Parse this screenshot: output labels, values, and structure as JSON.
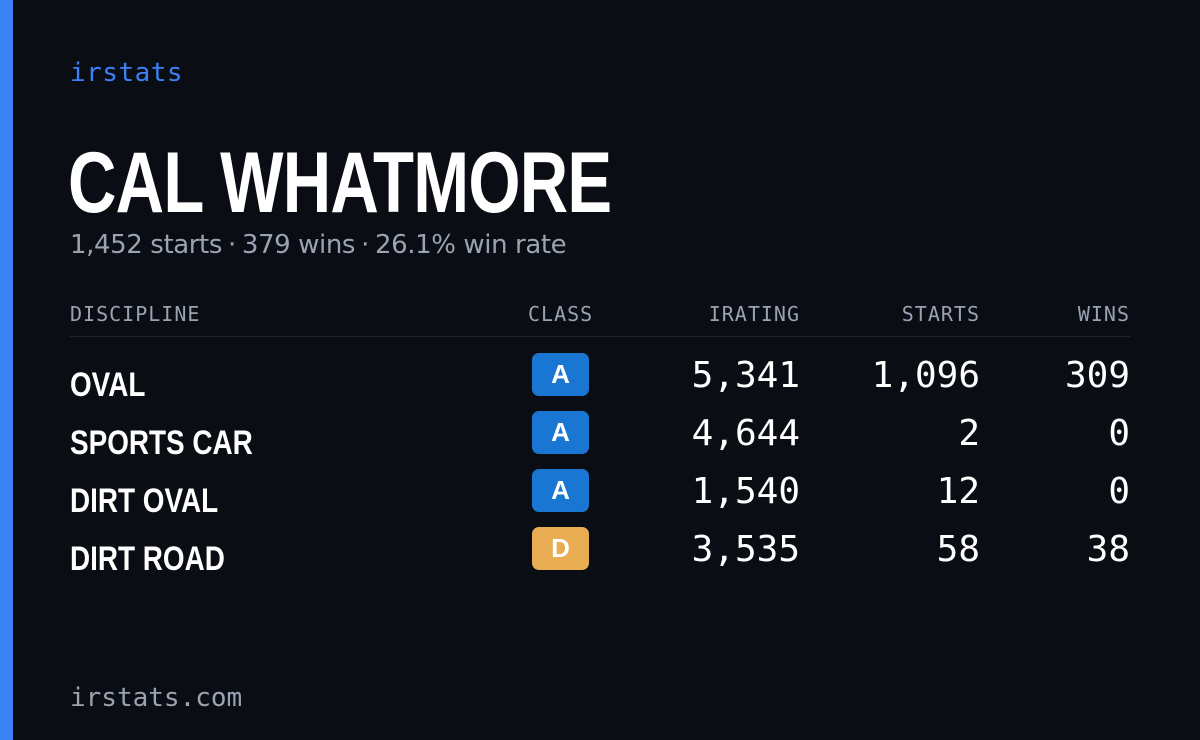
{
  "brand": "irstats",
  "driver": {
    "name": "CAL WHATMORE",
    "summary": {
      "starts": "1,452 starts",
      "wins": "379 wins",
      "win_rate": "26.1% win rate",
      "separator": "·"
    }
  },
  "table": {
    "headers": {
      "discipline": "DISCIPLINE",
      "class": "CLASS",
      "irating": "IRATING",
      "starts": "STARTS",
      "wins": "WINS"
    },
    "rows": [
      {
        "discipline": "OVAL",
        "class": "A",
        "irating": "5,341",
        "starts": "1,096",
        "wins": "309"
      },
      {
        "discipline": "SPORTS CAR",
        "class": "A",
        "irating": "4,644",
        "starts": "2",
        "wins": "0"
      },
      {
        "discipline": "DIRT OVAL",
        "class": "A",
        "irating": "1,540",
        "starts": "12",
        "wins": "0"
      },
      {
        "discipline": "DIRT ROAD",
        "class": "D",
        "irating": "3,535",
        "starts": "58",
        "wins": "38"
      }
    ]
  },
  "colors": {
    "background": "#0a0d14",
    "accent": "#3b82f6",
    "class_a": "#1976d2",
    "class_d": "#e8ac52",
    "muted_text": "#9aa3b2"
  },
  "footer": "irstats.com"
}
